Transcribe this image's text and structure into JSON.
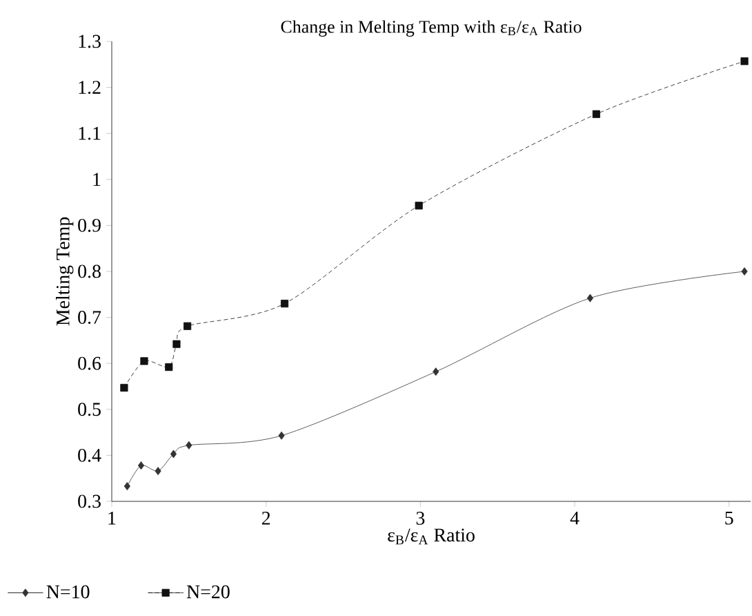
{
  "chart_data": {
    "type": "line",
    "title": "Change in Melting Temp with ε$_{B}$/ε$_{A}$ Ratio",
    "xlabel": "ε$_{B}$/ε$_{A}$ Ratio",
    "ylabel": "Melting Temp",
    "xlim": [
      1,
      5.14
    ],
    "xticks": [
      1,
      2,
      3,
      4,
      5
    ],
    "ylim": [
      0.3,
      1.3
    ],
    "yticks": [
      0.3,
      0.4,
      0.5,
      0.6,
      0.7,
      0.8,
      0.9,
      1,
      1.1,
      1.2,
      1.3
    ],
    "legend": "bottom left",
    "series": [
      {
        "name": "N=10",
        "color": "#333333",
        "marker": "diamond",
        "line_style": "solid",
        "x": [
          1.1,
          1.19,
          1.3,
          1.4,
          1.5,
          2.1,
          3.1,
          4.1,
          5.1
        ],
        "values": [
          0.333,
          0.378,
          0.366,
          0.403,
          0.422,
          0.443,
          0.582,
          0.742,
          0.8
        ]
      },
      {
        "name": "N=20",
        "color": "#111111",
        "marker": "square",
        "line_style": "dashed",
        "x": [
          1.08,
          1.21,
          1.37,
          1.42,
          1.49,
          2.12,
          2.99,
          4.14,
          5.1
        ],
        "values": [
          0.547,
          0.605,
          0.592,
          0.642,
          0.681,
          0.73,
          0.943,
          1.142,
          1.257
        ]
      }
    ]
  }
}
